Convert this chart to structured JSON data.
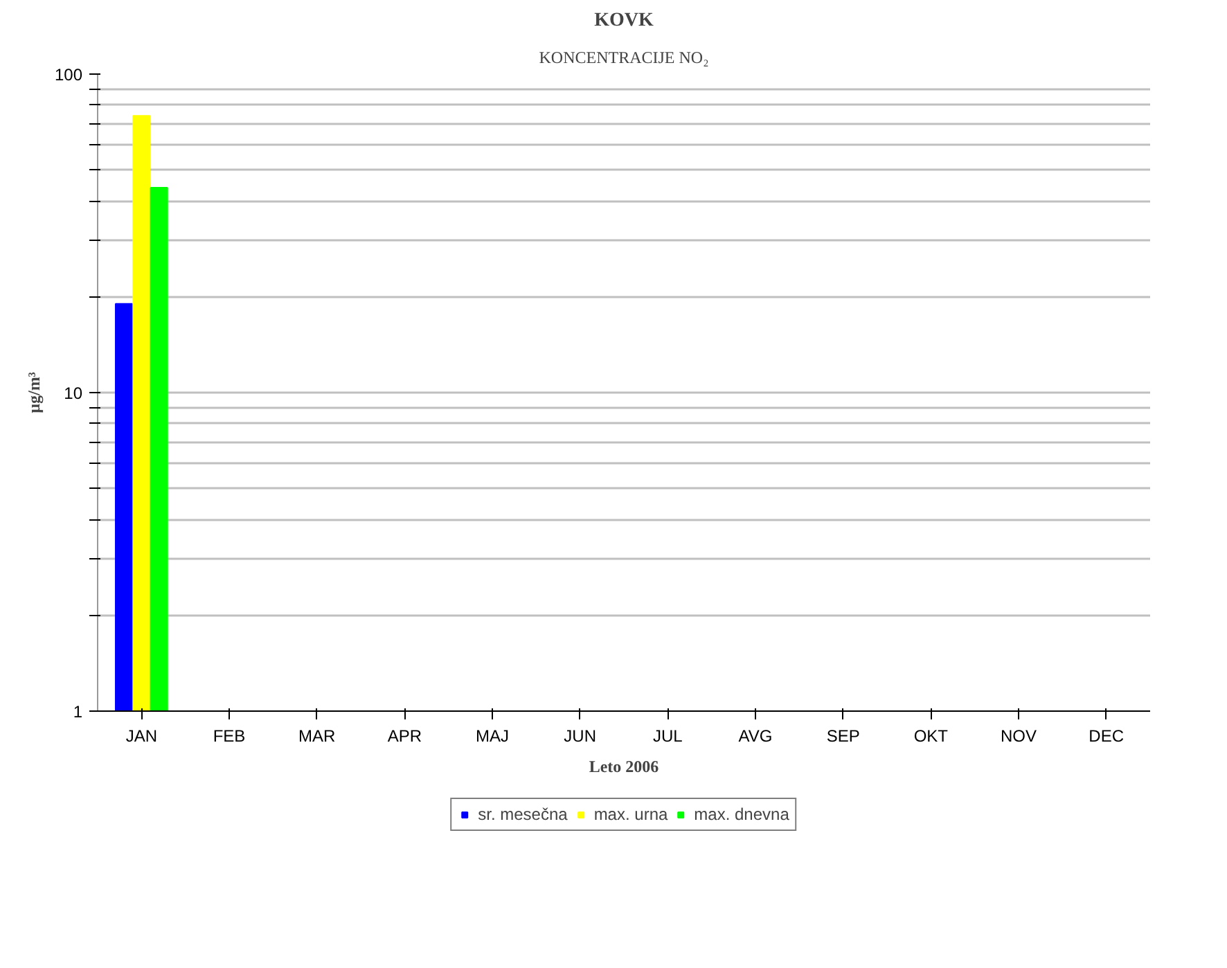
{
  "chart_data": {
    "type": "bar",
    "title": "KOVK",
    "subtitle": "KONCENTRACIJE NO₂",
    "xlabel": "Leto 2006",
    "ylabel": "µg/m³",
    "categories": [
      "JAN",
      "FEB",
      "MAR",
      "APR",
      "MAJ",
      "JUN",
      "JUL",
      "AVG",
      "SEP",
      "OKT",
      "NOV",
      "DEC"
    ],
    "series": [
      {
        "name": "sr. mesečna",
        "color": "#0000ff",
        "values": [
          19,
          null,
          null,
          null,
          null,
          null,
          null,
          null,
          null,
          null,
          null,
          null
        ]
      },
      {
        "name": "max. urna",
        "color": "#ffff00",
        "values": [
          74,
          null,
          null,
          null,
          null,
          null,
          null,
          null,
          null,
          null,
          null,
          null
        ]
      },
      {
        "name": "max. dnevna",
        "color": "#00ff00",
        "values": [
          44,
          null,
          null,
          null,
          null,
          null,
          null,
          null,
          null,
          null,
          null,
          null
        ]
      }
    ],
    "log": "y",
    "ylim": [
      1,
      100
    ],
    "yticks": [
      1,
      {
        "value": 2,
        "label": null
      },
      {
        "value": 3,
        "label": null
      },
      {
        "value": 4,
        "label": null
      },
      {
        "value": 5,
        "label": null
      },
      {
        "value": 6,
        "label": null
      },
      {
        "value": 7,
        "label": null
      },
      {
        "value": 8,
        "label": null
      },
      {
        "value": 9,
        "label": null
      },
      10,
      {
        "value": 20,
        "label": null
      },
      {
        "value": 30,
        "label": null
      },
      {
        "value": 40,
        "label": null
      },
      {
        "value": 50,
        "label": null
      },
      {
        "value": 60,
        "label": null
      },
      {
        "value": 70,
        "label": null
      },
      {
        "value": 80,
        "label": null
      },
      {
        "value": 90,
        "label": null
      },
      100
    ],
    "grid": "y",
    "legend": "bottom"
  }
}
